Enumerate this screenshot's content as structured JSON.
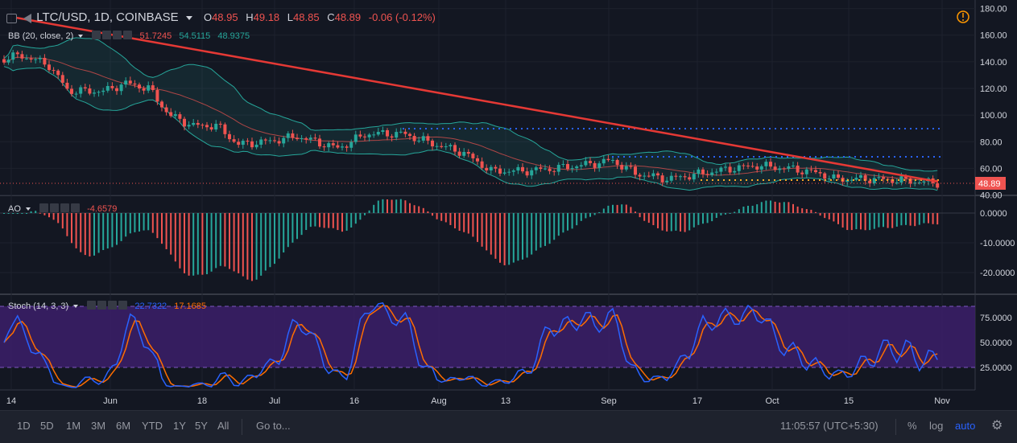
{
  "header": {
    "symbol": "LTC/USD, 1D, COINBASE",
    "open_label": "O",
    "open": "48.95",
    "high_label": "H",
    "high": "49.18",
    "low_label": "L",
    "low": "48.85",
    "close_label": "C",
    "close": "48.89",
    "change": "-0.06 (-0.12%)"
  },
  "indicators": {
    "bb": {
      "name": "BB (20, close, 2)",
      "v1": "51.7245",
      "v2": "54.5115",
      "v3": "48.9375"
    },
    "ao": {
      "name": "AO",
      "v1": "-4.6579"
    },
    "stoch": {
      "name": "Stoch (14, 3, 3)",
      "v1": "22.7322",
      "v2": "17.1685"
    }
  },
  "price_axis": {
    "ticks": [
      "180.00",
      "160.00",
      "140.00",
      "120.00",
      "100.00",
      "80.00",
      "60.00",
      "40.00"
    ],
    "last_price": "48.89"
  },
  "ao_axis": {
    "ticks": [
      "0.0000",
      "-10.0000",
      "-20.0000"
    ]
  },
  "stoch_axis": {
    "ticks": [
      "75.0000",
      "50.0000",
      "25.0000"
    ]
  },
  "time_axis": {
    "ticks": [
      "14",
      "Jun",
      "18",
      "Jul",
      "16",
      "Aug",
      "13",
      "Sep",
      "17",
      "Oct",
      "15",
      "Nov"
    ]
  },
  "bottom_bar": {
    "ranges": [
      "1D",
      "5D",
      "1M",
      "3M",
      "6M",
      "YTD",
      "1Y",
      "5Y",
      "All"
    ],
    "goto": "Go to...",
    "time": "11:05:57 (UTC+5:30)",
    "percent": "%",
    "log": "log",
    "auto": "auto"
  },
  "colors": {
    "background": "#131722",
    "up_candle": "#26a69a",
    "down_candle": "#ef5350",
    "trendline": "#e53935",
    "stoch_k": "#2962ff",
    "stoch_d": "#ff6d00",
    "stoch_band": "#3c1f6a",
    "auto_accent": "#2962ff"
  }
}
